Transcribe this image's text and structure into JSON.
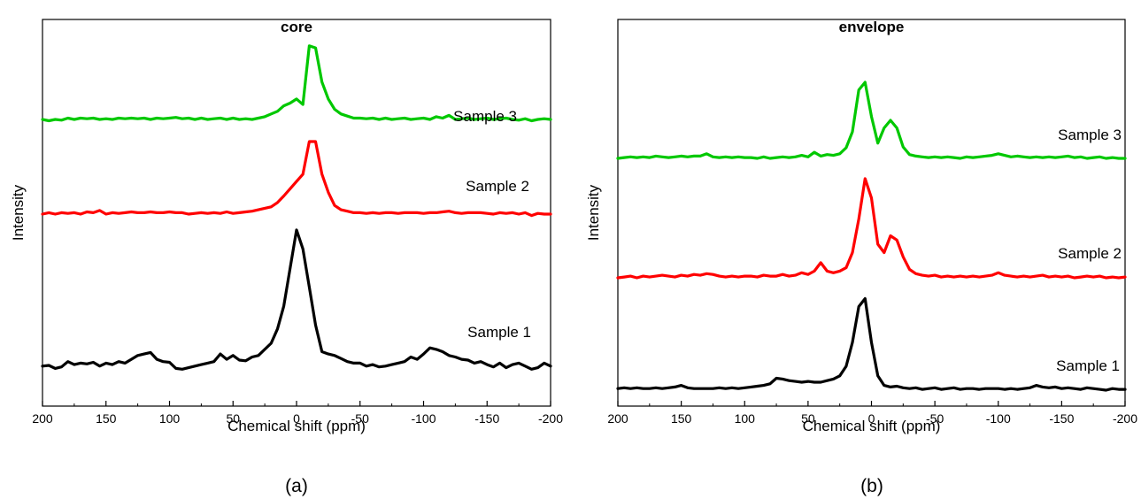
{
  "chart_data": [
    {
      "type": "line",
      "panel_caption": "(a)",
      "title": "core",
      "xlabel": "Chemical shift (ppm)",
      "ylabel": "Intensity",
      "xlim": [
        200,
        -200
      ],
      "xticks": [
        200,
        150,
        100,
        50,
        0,
        -50,
        -100,
        -150,
        -200
      ],
      "x_reversed": true,
      "y_ticks_shown": false,
      "series": [
        {
          "name": "Sample 1",
          "color": "#000000",
          "x": [
            200,
            195,
            190,
            185,
            180,
            175,
            170,
            165,
            160,
            155,
            150,
            145,
            140,
            135,
            130,
            125,
            120,
            115,
            110,
            105,
            100,
            95,
            90,
            85,
            80,
            75,
            70,
            65,
            60,
            55,
            50,
            45,
            40,
            35,
            30,
            25,
            20,
            15,
            10,
            5,
            0,
            -5,
            -10,
            -15,
            -20,
            -25,
            -30,
            -35,
            -40,
            -45,
            -50,
            -55,
            -60,
            -65,
            -70,
            -75,
            -80,
            -85,
            -90,
            -95,
            -100,
            -105,
            -110,
            -115,
            -120,
            -125,
            -130,
            -135,
            -140,
            -145,
            -150,
            -155,
            -160,
            -165,
            -170,
            -175,
            -180,
            -185,
            -190,
            -195,
            -200
          ],
          "y": [
            0.06,
            0.07,
            0.03,
            0.05,
            0.12,
            0.08,
            0.1,
            0.09,
            0.11,
            0.06,
            0.1,
            0.08,
            0.12,
            0.1,
            0.15,
            0.2,
            0.22,
            0.24,
            0.15,
            0.12,
            0.11,
            0.03,
            0.02,
            0.04,
            0.06,
            0.08,
            0.1,
            0.12,
            0.22,
            0.15,
            0.2,
            0.14,
            0.13,
            0.18,
            0.2,
            0.28,
            0.36,
            0.55,
            0.85,
            1.35,
            1.85,
            1.6,
            1.1,
            0.6,
            0.25,
            0.22,
            0.2,
            0.16,
            0.12,
            0.1,
            0.1,
            0.06,
            0.08,
            0.05,
            0.06,
            0.08,
            0.1,
            0.12,
            0.18,
            0.15,
            0.22,
            0.3,
            0.28,
            0.25,
            0.2,
            0.18,
            0.15,
            0.14,
            0.1,
            0.12,
            0.08,
            0.05,
            0.1,
            0.04,
            0.08,
            0.1,
            0.06,
            0.02,
            0.04,
            0.1,
            0.06
          ]
        },
        {
          "name": "Sample 2",
          "color": "#ff0000",
          "x": [
            200,
            195,
            190,
            185,
            180,
            175,
            170,
            165,
            160,
            155,
            150,
            145,
            140,
            135,
            130,
            125,
            120,
            115,
            110,
            105,
            100,
            95,
            90,
            85,
            80,
            75,
            70,
            65,
            60,
            55,
            50,
            45,
            40,
            35,
            30,
            25,
            20,
            15,
            10,
            5,
            0,
            -5,
            -10,
            -15,
            -20,
            -25,
            -30,
            -35,
            -40,
            -45,
            -50,
            -55,
            -60,
            -65,
            -70,
            -75,
            -80,
            -85,
            -90,
            -95,
            -100,
            -105,
            -110,
            -115,
            -120,
            -125,
            -130,
            -135,
            -140,
            -145,
            -150,
            -155,
            -160,
            -165,
            -170,
            -175,
            -180,
            -185,
            -190,
            -195,
            -200
          ],
          "y": [
            0.0,
            0.02,
            0.0,
            0.02,
            0.01,
            0.02,
            0.0,
            0.03,
            0.02,
            0.05,
            0.0,
            0.02,
            0.01,
            0.02,
            0.03,
            0.02,
            0.02,
            0.03,
            0.02,
            0.02,
            0.03,
            0.02,
            0.02,
            0.0,
            0.01,
            0.02,
            0.01,
            0.02,
            0.01,
            0.03,
            0.01,
            0.02,
            0.03,
            0.04,
            0.06,
            0.08,
            0.1,
            0.16,
            0.25,
            0.35,
            0.45,
            0.55,
            1.0,
            1.0,
            0.55,
            0.3,
            0.12,
            0.06,
            0.04,
            0.02,
            0.02,
            0.01,
            0.02,
            0.01,
            0.02,
            0.02,
            0.01,
            0.02,
            0.02,
            0.02,
            0.01,
            0.02,
            0.02,
            0.03,
            0.04,
            0.02,
            0.01,
            0.02,
            0.02,
            0.02,
            0.01,
            0.0,
            0.02,
            0.01,
            0.02,
            0.0,
            0.02,
            -0.02,
            0.01,
            0.0,
            0.0
          ]
        },
        {
          "name": "Sample 3",
          "color": "#00c800",
          "x": [
            200,
            195,
            190,
            185,
            180,
            175,
            170,
            165,
            160,
            155,
            150,
            145,
            140,
            135,
            130,
            125,
            120,
            115,
            110,
            105,
            100,
            95,
            90,
            85,
            80,
            75,
            70,
            65,
            60,
            55,
            50,
            45,
            40,
            35,
            30,
            25,
            20,
            15,
            10,
            5,
            0,
            -5,
            -10,
            -15,
            -20,
            -25,
            -30,
            -35,
            -40,
            -45,
            -50,
            -55,
            -60,
            -65,
            -70,
            -75,
            -80,
            -85,
            -90,
            -95,
            -100,
            -105,
            -110,
            -115,
            -120,
            -125,
            -130,
            -135,
            -140,
            -145,
            -150,
            -155,
            -160,
            -165,
            -170,
            -175,
            -180,
            -185,
            -190,
            -195,
            -200
          ],
          "y": [
            0.0,
            -0.02,
            0.0,
            -0.01,
            0.02,
            0.0,
            0.02,
            0.01,
            0.02,
            0.0,
            0.01,
            0.0,
            0.02,
            0.01,
            0.02,
            0.01,
            0.02,
            0.0,
            0.02,
            0.01,
            0.02,
            0.03,
            0.01,
            0.02,
            0.0,
            0.02,
            0.0,
            0.01,
            0.02,
            0.0,
            0.02,
            0.0,
            0.01,
            0.0,
            0.02,
            0.04,
            0.08,
            0.12,
            0.2,
            0.24,
            0.3,
            0.22,
            1.08,
            1.05,
            0.55,
            0.3,
            0.15,
            0.08,
            0.05,
            0.02,
            0.02,
            0.01,
            0.02,
            0.0,
            0.02,
            0.0,
            0.01,
            0.02,
            0.0,
            0.01,
            0.02,
            0.0,
            0.04,
            0.02,
            0.06,
            0.0,
            0.01,
            0.02,
            0.0,
            0.01,
            0.02,
            0.0,
            0.01,
            0.02,
            0.0,
            -0.01,
            0.01,
            -0.02,
            0.0,
            0.01,
            0.0
          ]
        }
      ]
    },
    {
      "type": "line",
      "panel_caption": "(b)",
      "title": "envelope",
      "xlabel": "Chemical shift (ppm)",
      "ylabel": "Intensity",
      "xlim": [
        200,
        -200
      ],
      "xticks": [
        200,
        150,
        100,
        50,
        0,
        -50,
        -100,
        -150,
        -200
      ],
      "x_reversed": true,
      "y_ticks_shown": false,
      "series": [
        {
          "name": "Sample 1",
          "color": "#000000",
          "x": [
            200,
            195,
            190,
            185,
            180,
            175,
            170,
            165,
            160,
            155,
            150,
            145,
            140,
            135,
            130,
            125,
            120,
            115,
            110,
            105,
            100,
            95,
            90,
            85,
            80,
            75,
            70,
            65,
            60,
            55,
            50,
            45,
            40,
            35,
            30,
            25,
            20,
            15,
            10,
            5,
            0,
            -5,
            -10,
            -15,
            -20,
            -25,
            -30,
            -35,
            -40,
            -45,
            -50,
            -55,
            -60,
            -65,
            -70,
            -75,
            -80,
            -85,
            -90,
            -95,
            -100,
            -105,
            -110,
            -115,
            -120,
            -125,
            -130,
            -135,
            -140,
            -145,
            -150,
            -155,
            -160,
            -165,
            -170,
            -175,
            -180,
            -185,
            -190,
            -195,
            -200
          ],
          "y": [
            0.02,
            0.03,
            0.02,
            0.03,
            0.02,
            0.02,
            0.03,
            0.02,
            0.03,
            0.04,
            0.06,
            0.03,
            0.02,
            0.02,
            0.02,
            0.02,
            0.03,
            0.02,
            0.03,
            0.02,
            0.03,
            0.04,
            0.05,
            0.06,
            0.08,
            0.15,
            0.14,
            0.12,
            0.11,
            0.1,
            0.11,
            0.1,
            0.1,
            0.12,
            0.14,
            0.18,
            0.3,
            0.6,
            1.05,
            1.15,
            0.6,
            0.18,
            0.06,
            0.04,
            0.05,
            0.03,
            0.02,
            0.03,
            0.01,
            0.02,
            0.03,
            0.01,
            0.02,
            0.03,
            0.01,
            0.02,
            0.02,
            0.01,
            0.02,
            0.02,
            0.02,
            0.01,
            0.02,
            0.01,
            0.02,
            0.03,
            0.06,
            0.04,
            0.03,
            0.04,
            0.02,
            0.03,
            0.02,
            0.01,
            0.03,
            0.02,
            0.01,
            0.0,
            0.02,
            0.01,
            0.01
          ]
        },
        {
          "name": "Sample 2",
          "color": "#ff0000",
          "x": [
            200,
            195,
            190,
            185,
            180,
            175,
            170,
            165,
            160,
            155,
            150,
            145,
            140,
            135,
            130,
            125,
            120,
            115,
            110,
            105,
            100,
            95,
            90,
            85,
            80,
            75,
            70,
            65,
            60,
            55,
            50,
            45,
            40,
            35,
            30,
            25,
            20,
            15,
            10,
            5,
            0,
            -5,
            -10,
            -15,
            -20,
            -25,
            -30,
            -35,
            -40,
            -45,
            -50,
            -55,
            -60,
            -65,
            -70,
            -75,
            -80,
            -85,
            -90,
            -95,
            -100,
            -105,
            -110,
            -115,
            -120,
            -125,
            -130,
            -135,
            -140,
            -145,
            -150,
            -155,
            -160,
            -165,
            -170,
            -175,
            -180,
            -185,
            -190,
            -195,
            -200
          ],
          "y": [
            0.0,
            0.01,
            0.02,
            0.0,
            0.02,
            0.01,
            0.02,
            0.03,
            0.02,
            0.01,
            0.03,
            0.02,
            0.04,
            0.03,
            0.05,
            0.04,
            0.02,
            0.01,
            0.02,
            0.01,
            0.02,
            0.02,
            0.01,
            0.03,
            0.02,
            0.02,
            0.04,
            0.02,
            0.03,
            0.06,
            0.04,
            0.08,
            0.18,
            0.08,
            0.06,
            0.08,
            0.12,
            0.3,
            0.7,
            1.18,
            0.95,
            0.4,
            0.3,
            0.5,
            0.45,
            0.25,
            0.1,
            0.05,
            0.03,
            0.02,
            0.03,
            0.01,
            0.02,
            0.01,
            0.02,
            0.01,
            0.02,
            0.01,
            0.02,
            0.03,
            0.06,
            0.03,
            0.02,
            0.01,
            0.02,
            0.01,
            0.02,
            0.03,
            0.01,
            0.02,
            0.01,
            0.02,
            0.0,
            0.01,
            0.02,
            0.01,
            0.02,
            0.0,
            0.01,
            0.0,
            0.01
          ]
        },
        {
          "name": "Sample 3",
          "color": "#00c800",
          "x": [
            200,
            195,
            190,
            185,
            180,
            175,
            170,
            165,
            160,
            155,
            150,
            145,
            140,
            135,
            130,
            125,
            120,
            115,
            110,
            105,
            100,
            95,
            90,
            85,
            80,
            75,
            70,
            65,
            60,
            55,
            50,
            45,
            40,
            35,
            30,
            25,
            20,
            15,
            10,
            5,
            0,
            -5,
            -10,
            -15,
            -20,
            -25,
            -30,
            -35,
            -40,
            -45,
            -50,
            -55,
            -60,
            -65,
            -70,
            -75,
            -80,
            -85,
            -90,
            -95,
            -100,
            -105,
            -110,
            -115,
            -120,
            -125,
            -130,
            -135,
            -140,
            -145,
            -150,
            -155,
            -160,
            -165,
            -170,
            -175,
            -180,
            -185,
            -190,
            -195,
            -200
          ],
          "y": [
            0.0,
            0.01,
            0.02,
            0.01,
            0.02,
            0.01,
            0.03,
            0.02,
            0.01,
            0.02,
            0.03,
            0.02,
            0.03,
            0.03,
            0.06,
            0.02,
            0.01,
            0.02,
            0.01,
            0.02,
            0.01,
            0.01,
            0.0,
            0.02,
            0.0,
            0.01,
            0.02,
            0.01,
            0.02,
            0.04,
            0.02,
            0.08,
            0.03,
            0.05,
            0.04,
            0.06,
            0.14,
            0.35,
            0.9,
            1.0,
            0.55,
            0.2,
            0.4,
            0.5,
            0.4,
            0.15,
            0.05,
            0.03,
            0.02,
            0.01,
            0.02,
            0.01,
            0.02,
            0.01,
            0.0,
            0.02,
            0.01,
            0.02,
            0.03,
            0.04,
            0.06,
            0.04,
            0.02,
            0.03,
            0.02,
            0.01,
            0.02,
            0.01,
            0.02,
            0.01,
            0.02,
            0.03,
            0.01,
            0.02,
            0.0,
            0.01,
            0.02,
            0.0,
            0.01,
            0.0,
            0.0
          ]
        }
      ]
    }
  ]
}
